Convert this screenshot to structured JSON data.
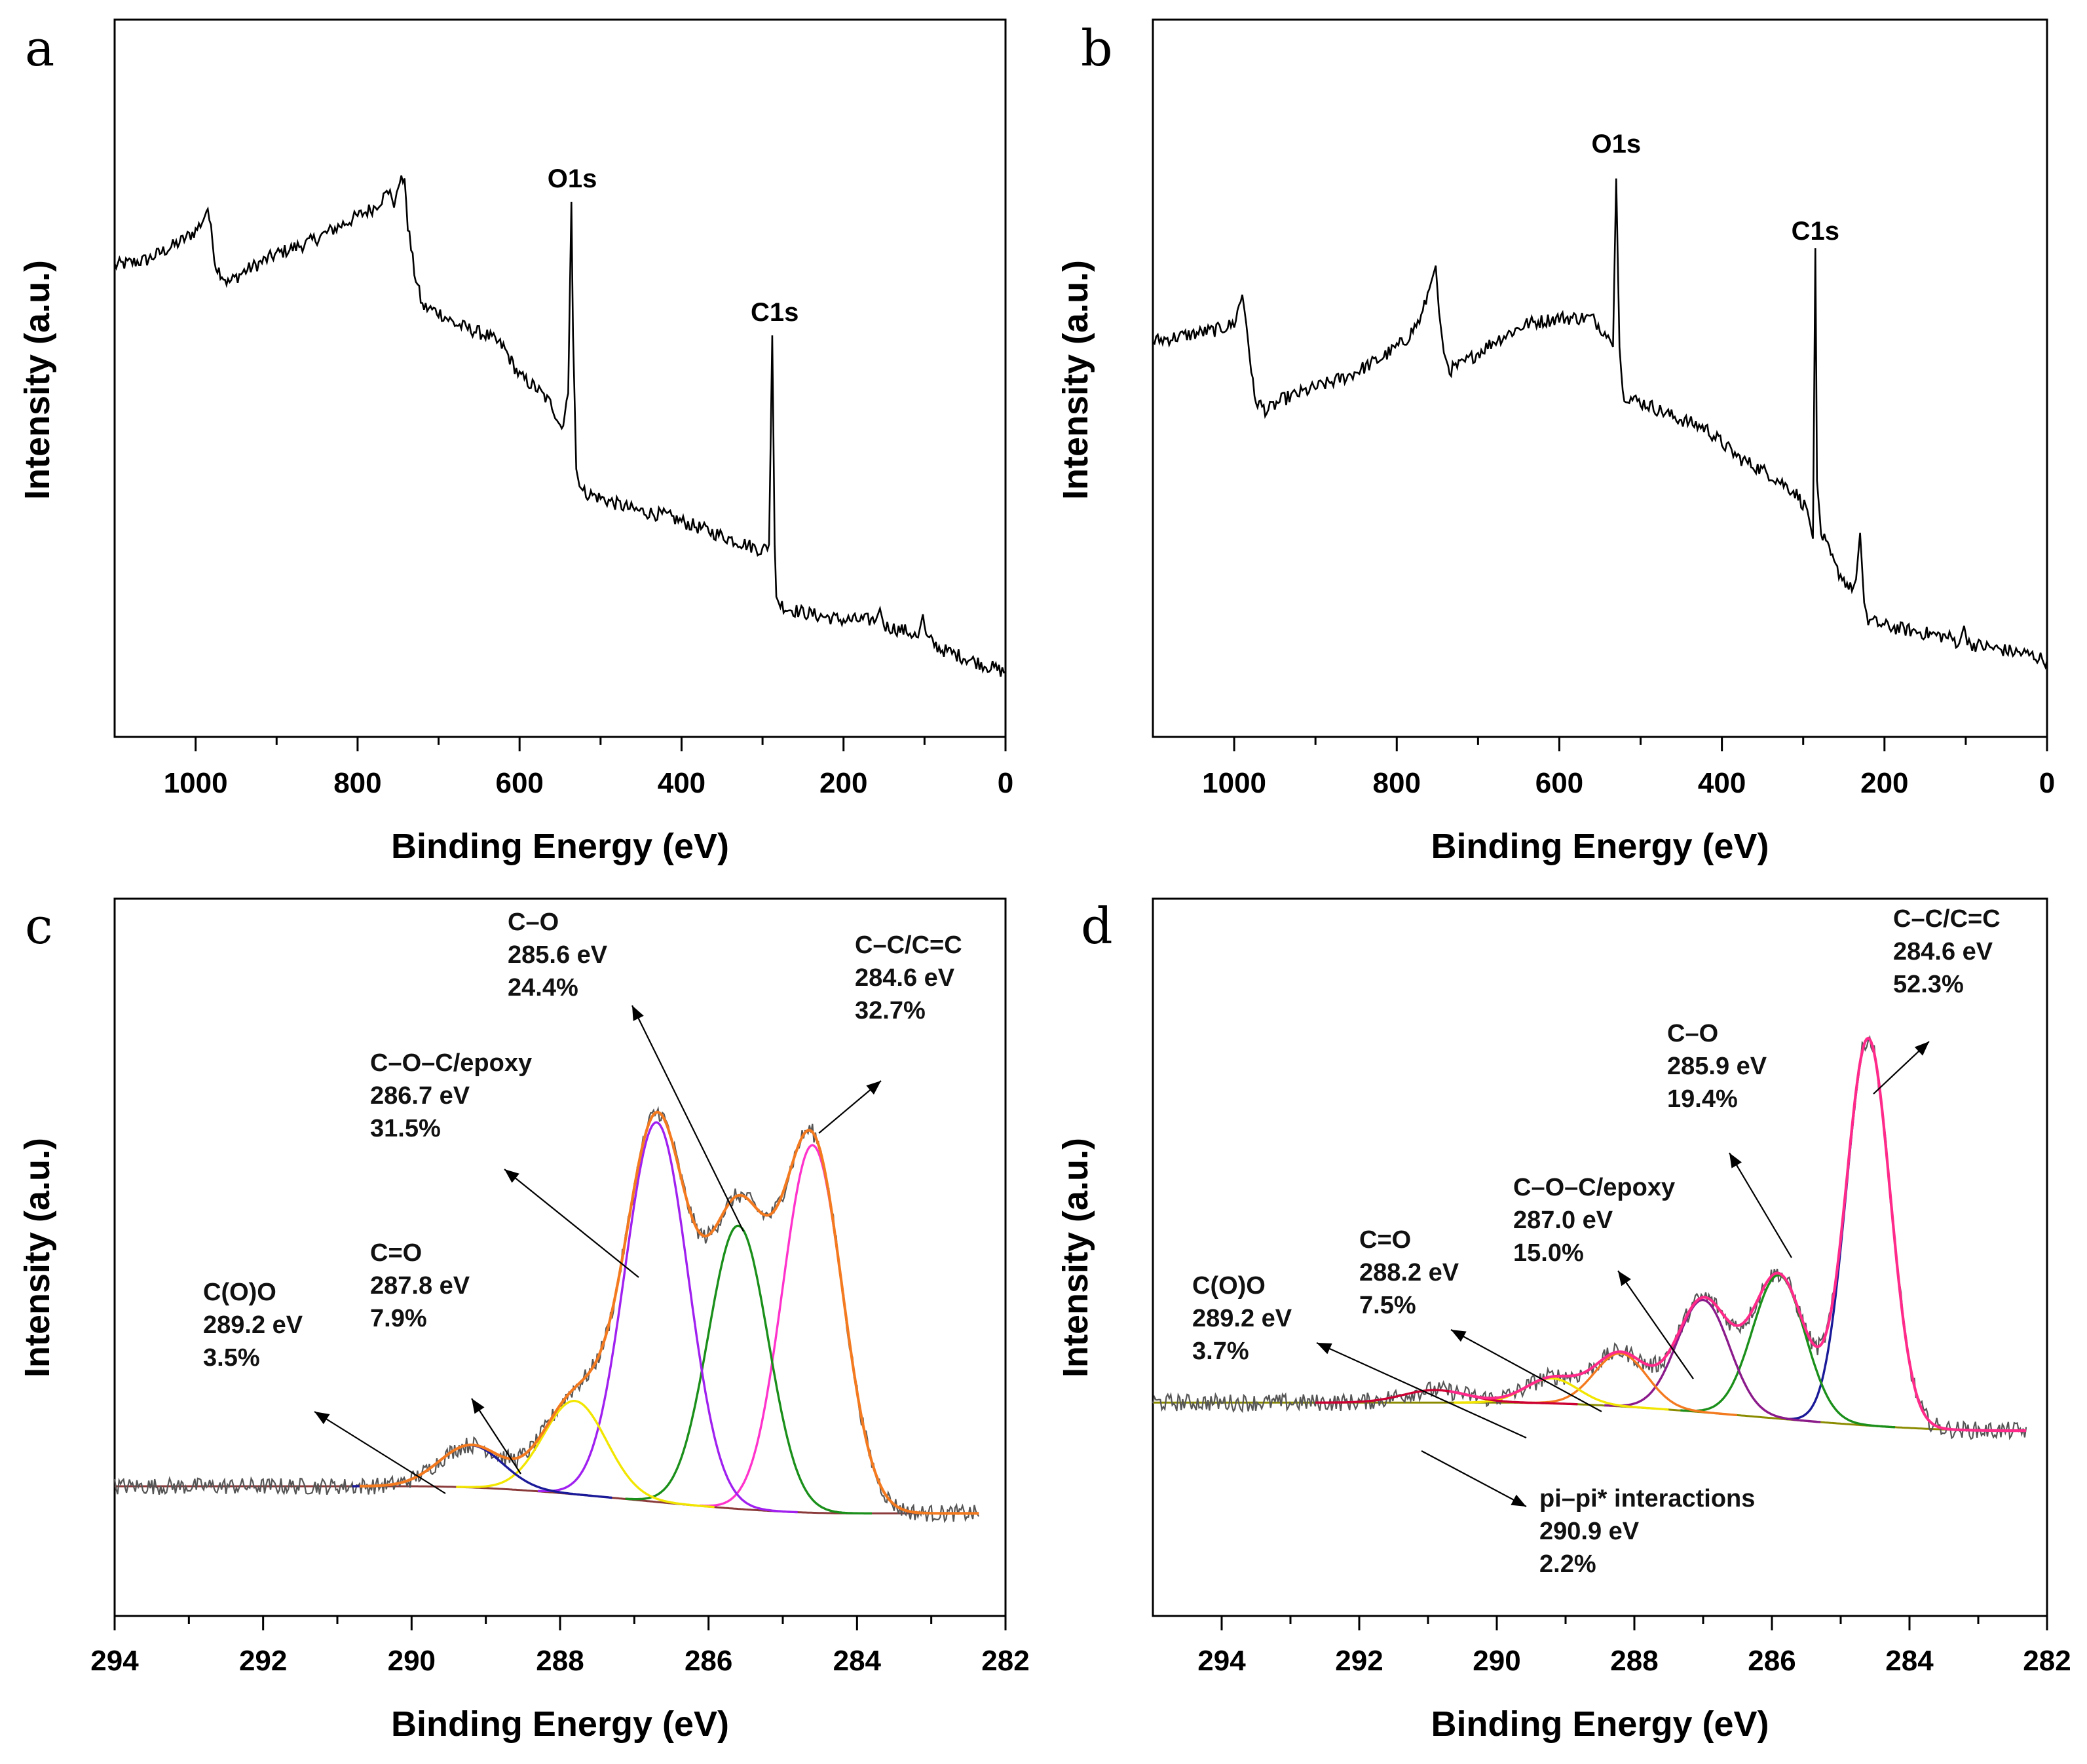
{
  "chart_data": [
    {
      "panel": "a",
      "type": "line",
      "xlabel": "Binding Energy (eV)",
      "ylabel": "Intensity (a.u.)",
      "xlim": [
        1100,
        0
      ],
      "xticks": [
        1000,
        800,
        600,
        400,
        200,
        0
      ],
      "xtick_labels": [
        "1000",
        "800",
        "600",
        "400",
        "200",
        "0"
      ],
      "ylim": [
        0,
        100
      ],
      "peak_labels": [
        {
          "text": "O1s",
          "x": 535,
          "y": 81
        },
        {
          "text": "C1s",
          "x": 285,
          "y": 58
        }
      ],
      "series": [
        {
          "name": "survey",
          "color": "#000000",
          "x": [
            1100,
            1060,
            1020,
            1000,
            990,
            985,
            975,
            960,
            940,
            900,
            860,
            820,
            780,
            760,
            755,
            750,
            742,
            738,
            730,
            720,
            700,
            680,
            640,
            620,
            600,
            580,
            560,
            548,
            540,
            536,
            534,
            530,
            526,
            520,
            500,
            460,
            420,
            380,
            340,
            300,
            292,
            288,
            285,
            283,
            280,
            270,
            240,
            200,
            160,
            155,
            150,
            120,
            108,
            102,
            98,
            80,
            40,
            0
          ],
          "y": [
            70,
            71,
            74,
            76,
            78,
            80,
            70,
            67,
            69,
            72,
            74,
            77,
            80,
            83,
            80,
            84,
            85,
            77,
            69,
            63,
            62,
            60,
            58,
            56,
            51,
            49,
            46,
            42,
            48,
            81,
            58,
            35,
            32,
            31,
            30,
            28,
            27,
            25,
            23,
            21,
            22,
            58,
            22,
            13,
            12,
            11,
            10,
            9,
            9,
            11,
            8,
            7,
            6,
            10,
            6,
            4,
            2,
            0
          ]
        }
      ]
    },
    {
      "panel": "b",
      "type": "line",
      "xlabel": "Binding Energy (eV)",
      "ylabel": "Intensity (a.u.)",
      "xlim": [
        1100,
        0
      ],
      "xticks": [
        1000,
        800,
        600,
        400,
        200,
        0
      ],
      "xtick_labels": [
        "1000",
        "800",
        "600",
        "400",
        "200",
        "0"
      ],
      "ylim": [
        0,
        100
      ],
      "peak_labels": [
        {
          "text": "O1s",
          "x": 530,
          "y": 87
        },
        {
          "text": "C1s",
          "x": 285,
          "y": 72
        }
      ],
      "series": [
        {
          "name": "survey",
          "color": "#000000",
          "x": [
            1100,
            1060,
            1020,
            1000,
            990,
            985,
            975,
            960,
            940,
            900,
            860,
            820,
            790,
            770,
            758,
            752,
            748,
            742,
            735,
            720,
            700,
            680,
            640,
            600,
            560,
            540,
            534,
            530,
            526,
            522,
            510,
            490,
            460,
            420,
            380,
            340,
            310,
            295,
            288,
            285,
            283,
            278,
            260,
            240,
            235,
            230,
            225,
            220,
            200,
            160,
            120,
            108,
            102,
            98,
            60,
            20,
            0
          ],
          "y": [
            57,
            58,
            59,
            60,
            65,
            60,
            47,
            45,
            47,
            49,
            51,
            54,
            57,
            61,
            67,
            70,
            62,
            55,
            52,
            53,
            55,
            57,
            60,
            61,
            61,
            58,
            56,
            85,
            56,
            48,
            47,
            46,
            44,
            42,
            37,
            34,
            31,
            28,
            23,
            73,
            33,
            24,
            18,
            14,
            16,
            24,
            12,
            9,
            8,
            7,
            6,
            5,
            8,
            5,
            4,
            3,
            2
          ]
        }
      ]
    },
    {
      "panel": "c",
      "type": "line",
      "xlabel": "Binding Energy (eV)",
      "ylabel": "Intensity (a.u.)",
      "xlim": [
        294,
        282
      ],
      "xticks": [
        294,
        292,
        290,
        288,
        286,
        284,
        282
      ],
      "xtick_labels": [
        "294",
        "292",
        "290",
        "288",
        "286",
        "284",
        "282"
      ],
      "ylim": [
        0,
        1
      ],
      "baseline": {
        "left_x": 290.0,
        "left_y": 0.12,
        "right_x": 284.0,
        "right_y": 0.075
      },
      "components": [
        {
          "name": "C–C/C=C",
          "center": 284.6,
          "height": 0.61,
          "width": 0.95,
          "color": "#ff33cc",
          "area_percent": 32.7
        },
        {
          "name": "C–O",
          "center": 285.6,
          "height": 0.47,
          "width": 0.95,
          "color": "#1a8f1a",
          "area_percent": 24.4
        },
        {
          "name": "C–O–C/epoxy",
          "center": 286.7,
          "height": 0.63,
          "width": 1.0,
          "color": "#a020f0",
          "area_percent": 31.5
        },
        {
          "name": "C=O",
          "center": 287.8,
          "height": 0.155,
          "width": 1.0,
          "color": "#f2e600",
          "area_percent": 7.9
        },
        {
          "name": "C(O)O",
          "center": 289.2,
          "height": 0.07,
          "width": 1.0,
          "color": "#1a1a99",
          "area_percent": 3.5
        }
      ],
      "envelope_color": "#f47a20",
      "raw_color": "#555555",
      "annotations": [
        {
          "lines": [
            "C–C/C=C",
            "284.6 eV",
            "32.7%"
          ]
        },
        {
          "lines": [
            "C–O",
            "285.6 eV",
            "24.4%"
          ]
        },
        {
          "lines": [
            "C–O–C/epoxy",
            "286.7 eV",
            "31.5%"
          ]
        },
        {
          "lines": [
            "C=O",
            "287.8 eV",
            "7.9%"
          ]
        },
        {
          "lines": [
            "C(O)O",
            "289.2 eV",
            "3.5%"
          ]
        }
      ]
    },
    {
      "panel": "d",
      "type": "line",
      "xlabel": "Binding Energy (eV)",
      "ylabel": "Intensity (a.u.)",
      "xlim": [
        295,
        282
      ],
      "xticks": [
        294,
        292,
        290,
        288,
        286,
        284,
        282
      ],
      "xtick_labels": [
        "294",
        "292",
        "290",
        "288",
        "286",
        "284",
        "282"
      ],
      "ylim": [
        0,
        1
      ],
      "baseline": {
        "left_x": 290.0,
        "left_y": 0.25,
        "right_x": 282.5,
        "right_y": 0.205
      },
      "components": [
        {
          "name": "C–C/C=C",
          "center": 284.6,
          "height": 0.62,
          "width": 0.75,
          "color": "#1a1a99",
          "area_percent": 52.3
        },
        {
          "name": "C–O",
          "center": 285.9,
          "height": 0.23,
          "width": 0.9,
          "color": "#1a8f1a",
          "area_percent": 19.4
        },
        {
          "name": "C–O–C/epoxy",
          "center": 287.0,
          "height": 0.18,
          "width": 0.9,
          "color": "#8b1a8b",
          "area_percent": 15.0
        },
        {
          "name": "C=O",
          "center": 288.2,
          "height": 0.085,
          "width": 0.9,
          "color": "#f47a20",
          "area_percent": 7.5
        },
        {
          "name": "C(O)O",
          "center": 289.2,
          "height": 0.04,
          "width": 0.9,
          "color": "#f2e600",
          "area_percent": 3.7
        },
        {
          "name": "pi–pi* interactions",
          "center": 290.9,
          "height": 0.02,
          "width": 1.1,
          "color": "#cc0033",
          "area_percent": 2.2
        }
      ],
      "envelope_color": "#ff2a8a",
      "raw_color": "#555555",
      "annotations": [
        {
          "lines": [
            "C–C/C=C",
            "284.6 eV",
            "52.3%"
          ]
        },
        {
          "lines": [
            "C–O",
            "285.9 eV",
            "19.4%"
          ]
        },
        {
          "lines": [
            "C–O–C/epoxy",
            "287.0 eV",
            "15.0%"
          ]
        },
        {
          "lines": [
            "C=O",
            "288.2 eV",
            "7.5%"
          ]
        },
        {
          "lines": [
            "C(O)O",
            "289.2 eV",
            "3.7%"
          ]
        },
        {
          "lines": [
            "pi–pi* interactions",
            "290.9 eV",
            "2.2%"
          ]
        }
      ]
    }
  ]
}
